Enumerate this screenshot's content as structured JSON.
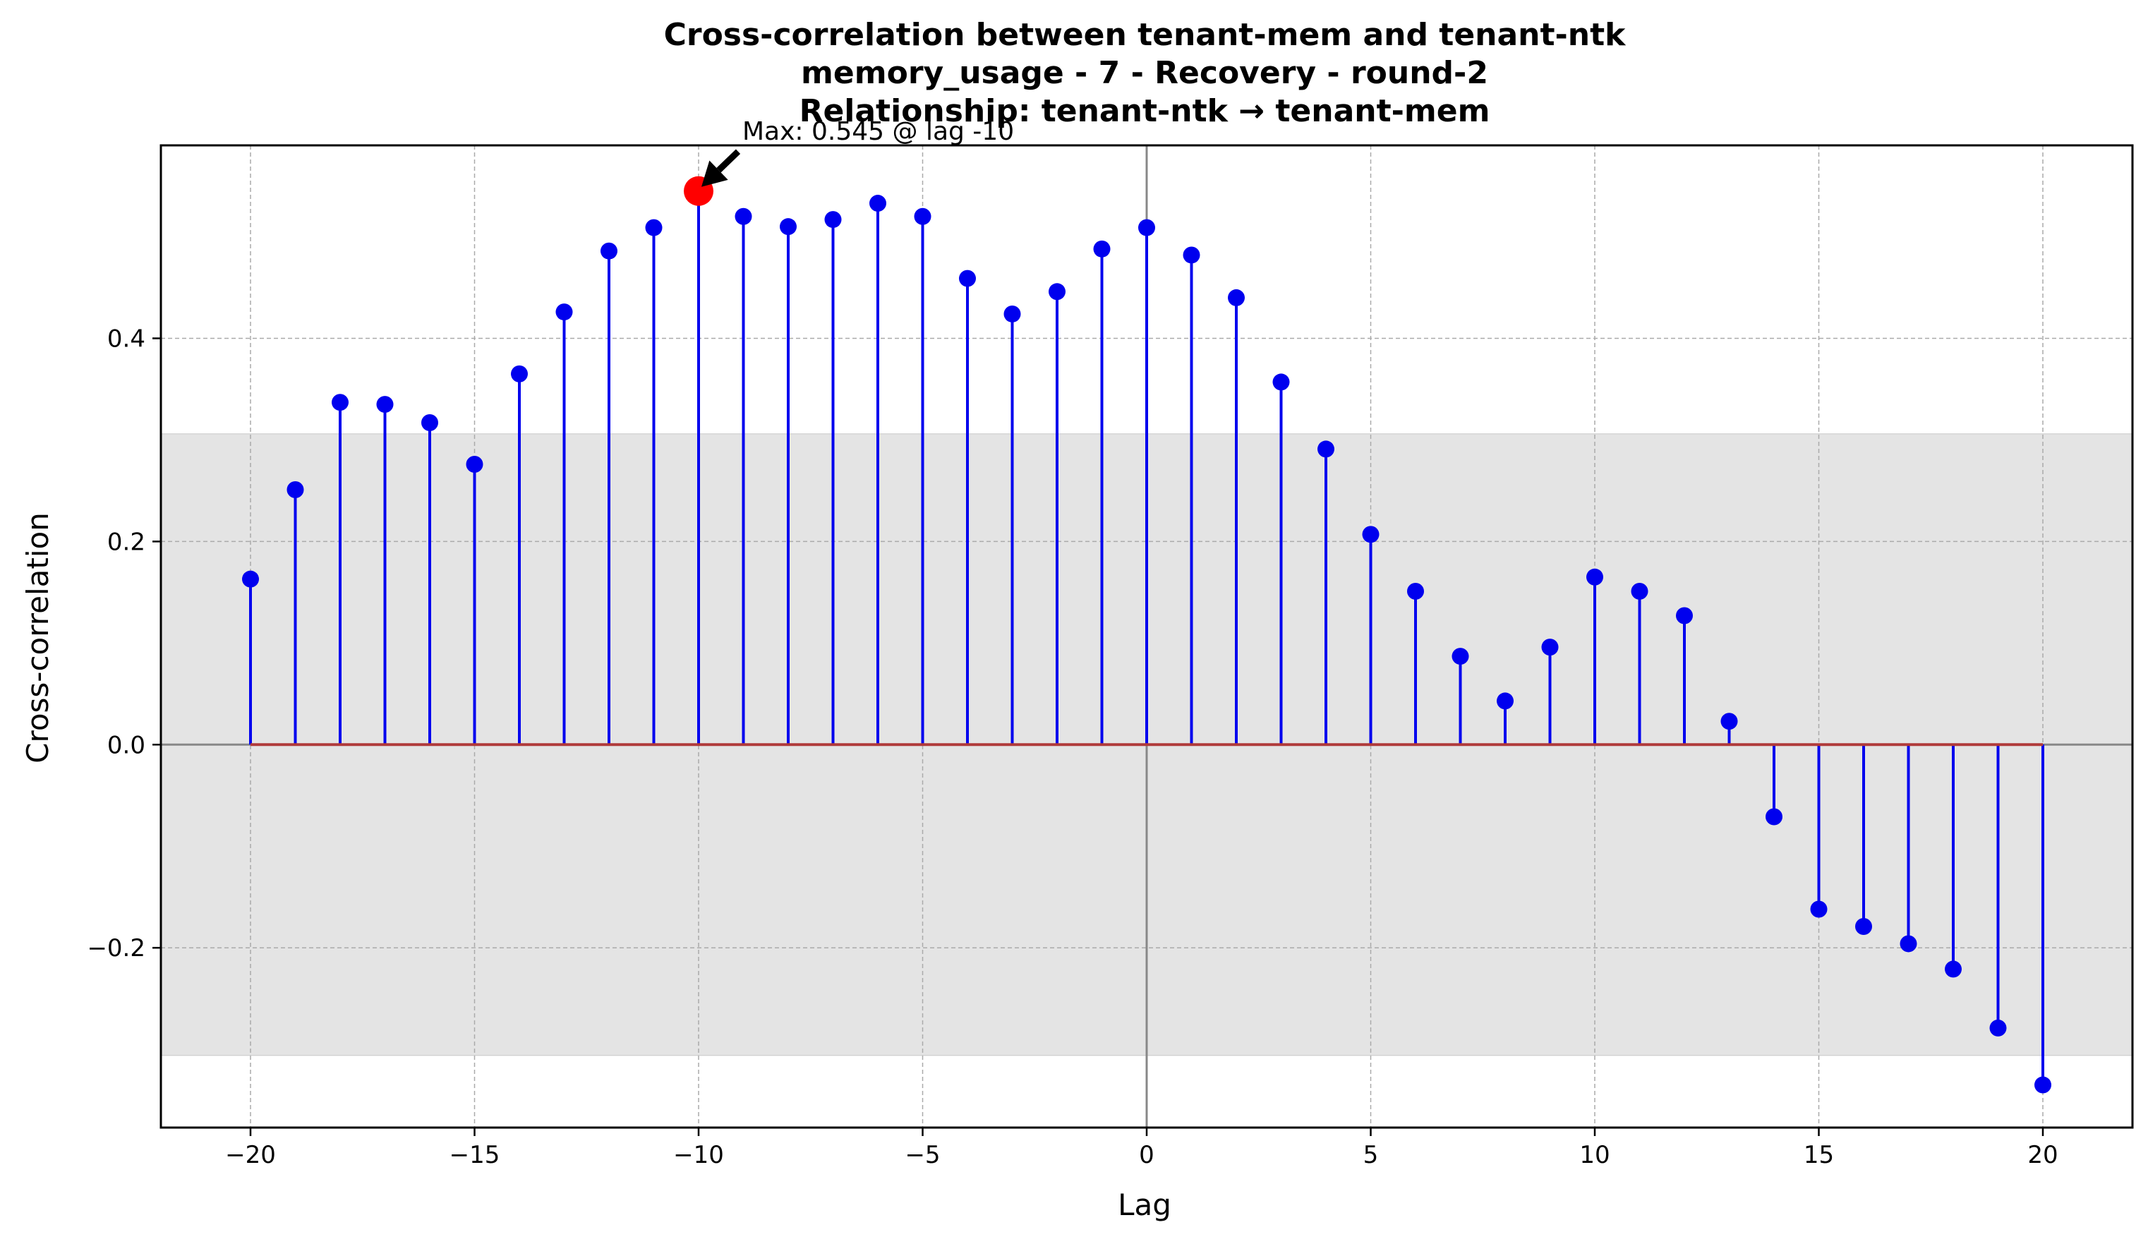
{
  "chart_data": {
    "type": "stem",
    "title_lines": [
      "Cross-correlation between tenant-mem and tenant-ntk",
      "memory_usage - 7 - Recovery - round-2",
      "Relationship: tenant-ntk → tenant-mem"
    ],
    "xlabel": "Lag",
    "ylabel": "Cross-correlation",
    "xlim": [
      -22,
      22
    ],
    "ylim": [
      -0.377,
      0.59
    ],
    "x_ticks": [
      -20,
      -15,
      -10,
      -5,
      0,
      5,
      10,
      15,
      20
    ],
    "x_tick_labels": [
      "−20",
      "−15",
      "−10",
      "−5",
      "0",
      "5",
      "10",
      "15",
      "20"
    ],
    "y_ticks": [
      -0.2,
      0.0,
      0.2,
      0.4
    ],
    "y_tick_labels": [
      "−0.2",
      "0.0",
      "0.2",
      "0.4"
    ],
    "grid": true,
    "confidence_band": [
      -0.306,
      0.306
    ],
    "lags": [
      -20,
      -19,
      -18,
      -17,
      -16,
      -15,
      -14,
      -13,
      -12,
      -11,
      -10,
      -9,
      -8,
      -7,
      -6,
      -5,
      -4,
      -3,
      -2,
      -1,
      0,
      1,
      2,
      3,
      4,
      5,
      6,
      7,
      8,
      9,
      10,
      11,
      12,
      13,
      14,
      15,
      16,
      17,
      18,
      19,
      20
    ],
    "values": [
      0.163,
      0.251,
      0.337,
      0.335,
      0.317,
      0.276,
      0.365,
      0.426,
      0.486,
      0.509,
      0.545,
      0.52,
      0.51,
      0.517,
      0.533,
      0.52,
      0.459,
      0.424,
      0.446,
      0.488,
      0.509,
      0.482,
      0.44,
      0.357,
      0.291,
      0.207,
      0.151,
      0.087,
      0.043,
      0.096,
      0.165,
      0.151,
      0.127,
      0.023,
      -0.071,
      -0.162,
      -0.179,
      -0.196,
      -0.221,
      -0.279,
      -0.335
    ],
    "max_point": {
      "lag": -10,
      "value": 0.545
    },
    "annotation": "Max: 0.545 @ lag -10",
    "colors": {
      "stem": "#0000ee",
      "marker": "#0000ee",
      "max_marker": "#ff0000",
      "baseline": "#b03a3a",
      "band": "#e4e4e4",
      "zero_line": "#888888",
      "grid": "#aaaaaa"
    }
  }
}
